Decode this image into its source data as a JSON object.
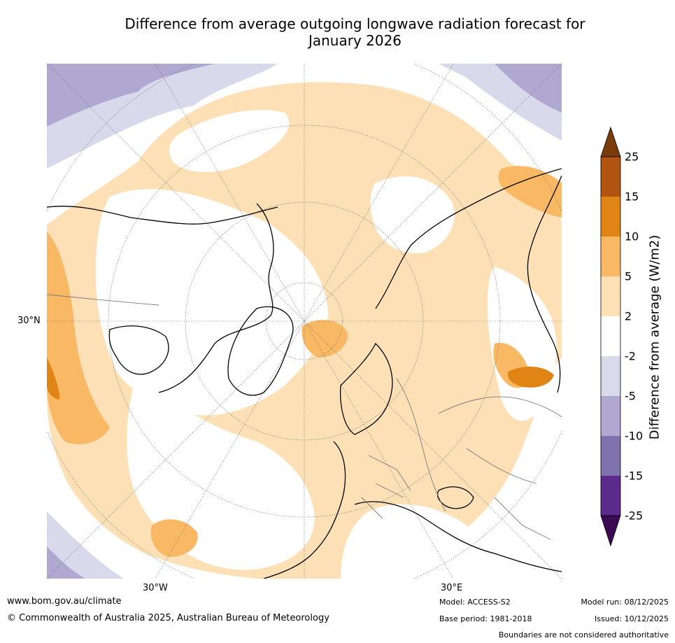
{
  "title_line1": "Difference from average outgoing longwave radiation forecast for",
  "title_line2": "January 2026",
  "map": {
    "projection": "north-polar-stereographic",
    "lat_label": "30°N",
    "lon_labels": [
      "30°W",
      "30°E"
    ],
    "features": [
      "coastlines",
      "country boundaries",
      "graticule"
    ],
    "fill_colors": {
      "land_mask": "#888888",
      "coast": "#000000",
      "border": "#7a7a7a",
      "grid": "#666666"
    }
  },
  "colorbar": {
    "label": "Difference from average (W/m2)",
    "ticks": [
      "25",
      "15",
      "10",
      "5",
      "2",
      "-2",
      "-5",
      "-10",
      "-15",
      "-25"
    ],
    "bands": [
      {
        "range": ">25",
        "color": "#7a3c0a"
      },
      {
        "range": "15 to 25",
        "color": "#b05410"
      },
      {
        "range": "10 to 15",
        "color": "#e08416"
      },
      {
        "range": "5 to 10",
        "color": "#f9b863"
      },
      {
        "range": "2 to 5",
        "color": "#fde0b6"
      },
      {
        "range": "-2 to 2",
        "color": "#ffffff"
      },
      {
        "range": "-5 to -2",
        "color": "#d9d9ec"
      },
      {
        "range": "-10 to -5",
        "color": "#b0a8d0"
      },
      {
        "range": "-15 to -10",
        "color": "#8072af"
      },
      {
        "range": "-25 to -15",
        "color": "#5a2a8c"
      },
      {
        "range": "<-25",
        "color": "#3b0a52"
      }
    ]
  },
  "footer": {
    "website": "www.bom.gov.au/climate",
    "copyright": "© Commonwealth of Australia 2025, Australian Bureau of Meteorology",
    "model": "Model: ACCESS-S2",
    "base_period": "Base period: 1981-2018",
    "model_run": "Model run: 08/12/2025",
    "issued": "Issued: 10/12/2025",
    "boundaries_note": "Boundaries are not considered authoritative"
  }
}
